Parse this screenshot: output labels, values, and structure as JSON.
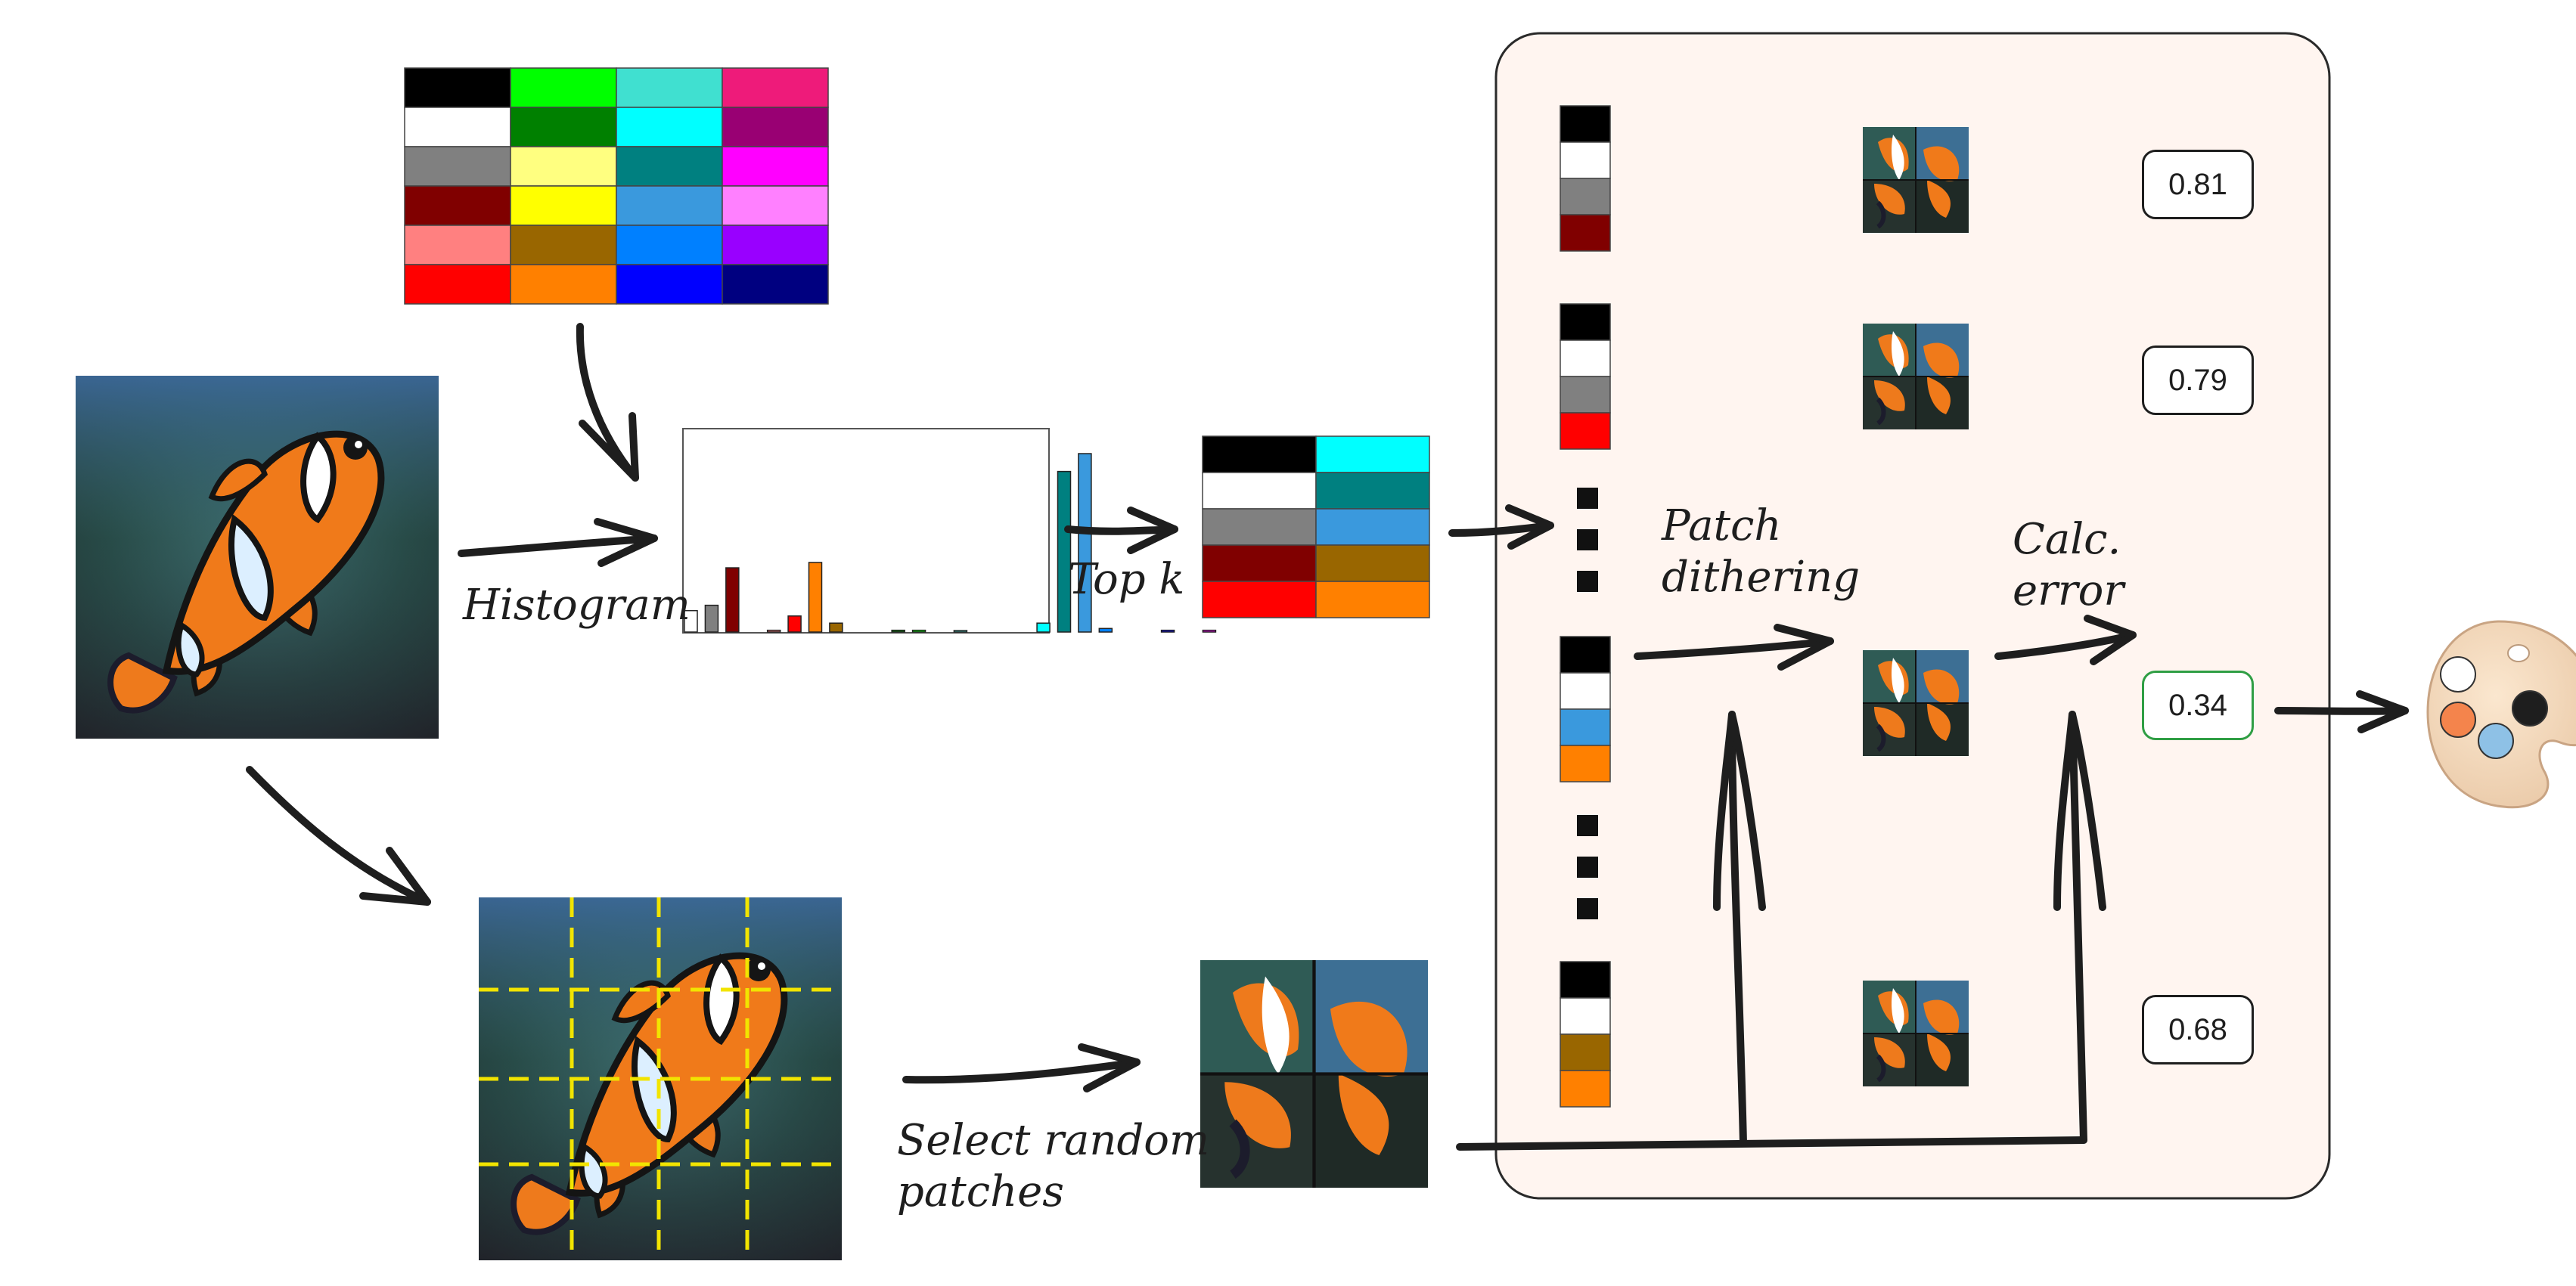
{
  "labels": {
    "histogram": "Histogram",
    "top_k": "Top k",
    "select_random_line1": "Select random",
    "select_random_line2": "patches",
    "patch_dithering_line1": "Patch",
    "patch_dithering_line2": "dithering",
    "calc_error_line1": "Calc.",
    "calc_error_line2": "error"
  },
  "full_palette": {
    "columns": [
      [
        "#000000",
        "#ffffff",
        "#808080",
        "#800000",
        "#ff8080",
        "#ff0000"
      ],
      [
        "#00ff00",
        "#008000",
        "#ffff80",
        "#ffff00",
        "#996600",
        "#ff8000"
      ],
      [
        "#40e0d0",
        "#00ffff",
        "#008080",
        "#3a99dd",
        "#0080ff",
        "#0000ff"
      ],
      [
        "#ee1b7a",
        "#990073",
        "#ff00ff",
        "#ff80ff",
        "#9900ff",
        "#000080"
      ]
    ]
  },
  "top_k_palette": {
    "columns": [
      [
        "#000000",
        "#ffffff",
        "#808080",
        "#800000",
        "#ff0000"
      ],
      [
        "#00ffff",
        "#008080",
        "#3a99dd",
        "#996600",
        "#ff8000"
      ]
    ]
  },
  "histogram_bars": [
    {
      "color": "#ffffff",
      "value": 0.12
    },
    {
      "color": "#808080",
      "value": 0.15
    },
    {
      "color": "#800000",
      "value": 0.36
    },
    {
      "color": "#ff8080",
      "value": 0.01
    },
    {
      "color": "#ff0000",
      "value": 0.09
    },
    {
      "color": "#ff8000",
      "value": 0.39
    },
    {
      "color": "#996600",
      "value": 0.05
    },
    {
      "color": "#008000",
      "value": 0.01
    },
    {
      "color": "#00ff00",
      "value": 0.01
    },
    {
      "color": "#40e0d0",
      "value": 0.005
    },
    {
      "color": "#00ffff",
      "value": 0.05
    },
    {
      "color": "#008080",
      "value": 0.9
    },
    {
      "color": "#3a99dd",
      "value": 1.0
    },
    {
      "color": "#0080ff",
      "value": 0.02
    },
    {
      "color": "#0000ff",
      "value": 0.01
    },
    {
      "color": "#ff00ff",
      "value": 0.01
    }
  ],
  "candidate_palettes": [
    {
      "colors": [
        "#000000",
        "#ffffff",
        "#808080",
        "#800000"
      ],
      "score": "0.81",
      "best": false
    },
    {
      "colors": [
        "#000000",
        "#ffffff",
        "#808080",
        "#ff0000"
      ],
      "score": "0.79",
      "best": false
    },
    {
      "colors": [
        "#000000",
        "#ffffff",
        "#3a99dd",
        "#ff8000"
      ],
      "score": "0.34",
      "best": true
    },
    {
      "colors": [
        "#000000",
        "#ffffff",
        "#996600",
        "#ff8000"
      ],
      "score": "0.68",
      "best": false
    }
  ],
  "result_palette_colors": [
    "#ffffff",
    "#1e1e1e",
    "#f4844c",
    "#8ec1e6"
  ]
}
